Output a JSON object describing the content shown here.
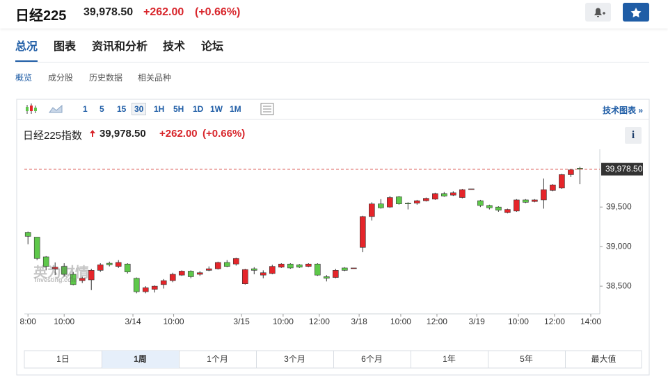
{
  "header": {
    "title": "日经225",
    "price": "39,978.50",
    "change": "+262.00",
    "percent": "(+0.66%)"
  },
  "tabs": [
    "总况",
    "图表",
    "资讯和分析",
    "技术",
    "论坛"
  ],
  "subtabs": [
    "概览",
    "成分股",
    "历史数据",
    "相关品种"
  ],
  "toolbar": {
    "intervals": [
      "1",
      "5",
      "15",
      "30",
      "1H",
      "5H",
      "1D",
      "1W",
      "1M"
    ],
    "link": "技术图表 »"
  },
  "ranges": [
    "1日",
    "1周",
    "1个月",
    "3个月",
    "6个月",
    "1年",
    "5年",
    "最大值"
  ],
  "watermark": {
    "cn": "英为财情",
    "en": "Investing.com"
  },
  "chart_data": {
    "type": "candlestick",
    "title": "日经225指数",
    "price": "39,978.50",
    "change": "+262.00",
    "percent": "(+0.66%)",
    "up_color": "#e5252a",
    "down_color": "#5ec84a",
    "last_color": "#d64541",
    "last_line": {
      "value": 39978.5,
      "label": "39,978.50"
    },
    "ylim": [
      38150,
      40230
    ],
    "yticks": [
      {
        "value": 38500,
        "label": "38,500"
      },
      {
        "value": 39000,
        "label": "39,000"
      },
      {
        "value": 39500,
        "label": "39,500"
      }
    ],
    "xlim": [
      -0.4,
      63.2
    ],
    "xticks": [
      {
        "value": 0,
        "label": "8:00"
      },
      {
        "value": 4,
        "label": "10:00"
      },
      {
        "value": 11.6,
        "label": "3/14"
      },
      {
        "value": 16.1,
        "label": "10:00"
      },
      {
        "value": 23.6,
        "label": "3/15"
      },
      {
        "value": 28.2,
        "label": "10:00"
      },
      {
        "value": 32.2,
        "label": "12:00"
      },
      {
        "value": 36.6,
        "label": "3/18"
      },
      {
        "value": 41.2,
        "label": "10:00"
      },
      {
        "value": 45.2,
        "label": "12:00"
      },
      {
        "value": 49.6,
        "label": "3/19"
      },
      {
        "value": 54.2,
        "label": "10:00"
      },
      {
        "value": 58.2,
        "label": "12:00"
      },
      {
        "value": 62.2,
        "label": "14:00"
      }
    ],
    "open": [
      39180,
      39120,
      38870,
      38720,
      38750,
      38650,
      38570,
      38580,
      38700,
      38790,
      38750,
      38780,
      38600,
      38430,
      38460,
      38520,
      38570,
      38640,
      38690,
      38650,
      38700,
      38720,
      38800,
      38780,
      38530,
      38720,
      38640,
      38660,
      38740,
      38780,
      38770,
      38750,
      38780,
      38620,
      38610,
      38730,
      38730,
      38990,
      39380,
      39540,
      39500,
      39630,
      39550,
      39550,
      39580,
      39600,
      39670,
      39650,
      39620,
      39730,
      39580,
      39520,
      39500,
      39430,
      39450,
      39590,
      39570,
      39590,
      39710,
      39740,
      39910,
      39990
    ],
    "high": [
      39190,
      39120,
      38880,
      38800,
      38790,
      38680,
      38620,
      38720,
      38790,
      38810,
      38830,
      38790,
      38610,
      38500,
      38510,
      38590,
      38670,
      38700,
      38700,
      38690,
      38750,
      38810,
      38830,
      38860,
      38720,
      38740,
      38700,
      38770,
      38790,
      38790,
      38780,
      38790,
      38790,
      38640,
      38720,
      38740,
      38730,
      39390,
      39560,
      39600,
      39640,
      39640,
      39560,
      39590,
      39620,
      39680,
      39690,
      39700,
      39730,
      39730,
      39590,
      39530,
      39510,
      39480,
      39600,
      39600,
      39600,
      39860,
      39790,
      39920,
      39980,
      40010
    ],
    "low": [
      39030,
      38830,
      38700,
      38640,
      38620,
      38510,
      38540,
      38450,
      38680,
      38750,
      38730,
      38660,
      38410,
      38410,
      38420,
      38470,
      38550,
      38630,
      38600,
      38630,
      38690,
      38710,
      38740,
      38760,
      38520,
      38650,
      38600,
      38650,
      38730,
      38720,
      38730,
      38740,
      38630,
      38560,
      38600,
      38690,
      38730,
      38930,
      39330,
      39480,
      39490,
      39530,
      39470,
      39530,
      39570,
      39590,
      39630,
      39640,
      39610,
      39730,
      39500,
      39470,
      39440,
      39420,
      39440,
      39550,
      39560,
      39480,
      39700,
      39730,
      39880,
      39790
    ],
    "close": [
      39130,
      38850,
      38750,
      38740,
      38650,
      38520,
      38600,
      38700,
      38770,
      38770,
      38800,
      38680,
      38430,
      38480,
      38500,
      38570,
      38650,
      38690,
      38620,
      38670,
      38720,
      38800,
      38750,
      38850,
      38710,
      38700,
      38670,
      38750,
      38780,
      38730,
      38740,
      38780,
      38640,
      38600,
      38700,
      38700,
      38730,
      39380,
      39540,
      39490,
      39620,
      39540,
      39540,
      39580,
      39610,
      39670,
      39640,
      39680,
      39720,
      39730,
      39520,
      39490,
      39460,
      39470,
      39590,
      39560,
      39590,
      39720,
      39780,
      39910,
      39970,
      39978.5
    ]
  }
}
